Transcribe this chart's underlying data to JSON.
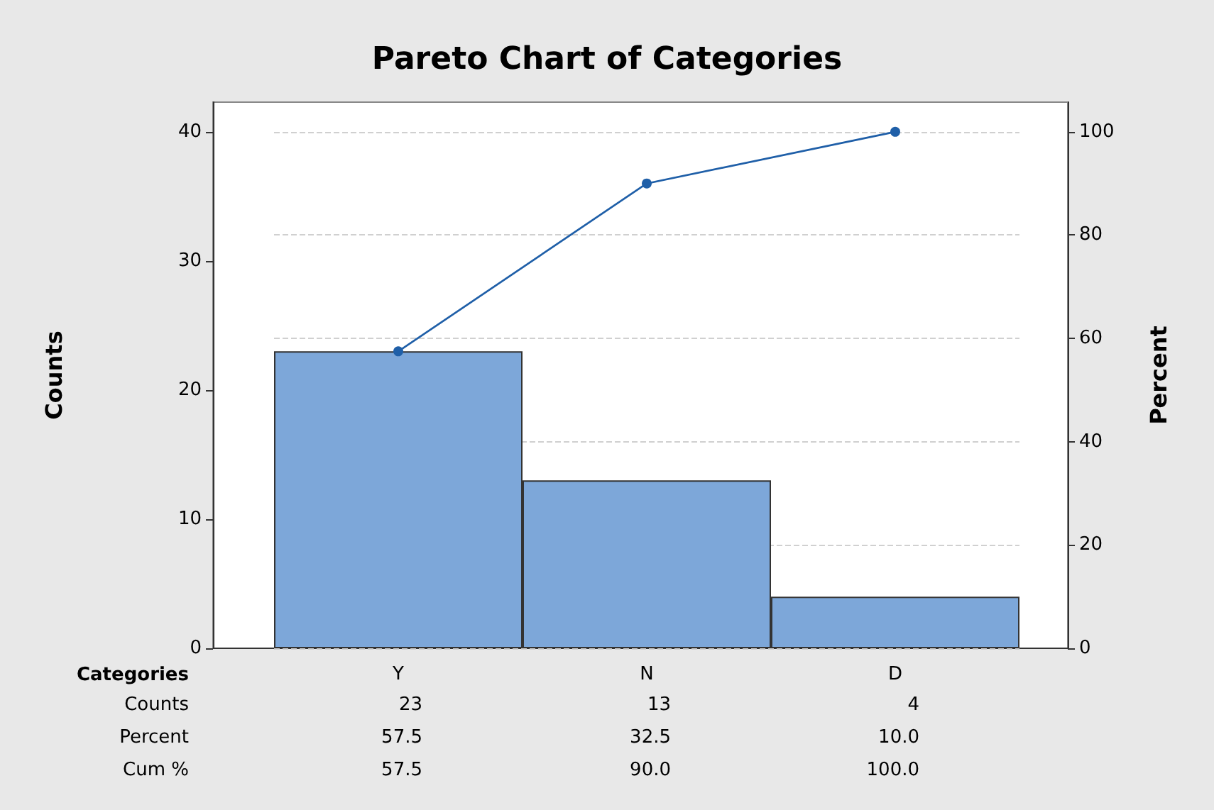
{
  "chart_data": {
    "type": "bar",
    "title": "Pareto Chart of Categories",
    "xlabel": "Categories",
    "ylabel": "Counts",
    "y2label": "Percent",
    "categories": [
      "Y",
      "N",
      "D"
    ],
    "series": [
      {
        "color": "#7da7d9",
        "values": [
          23,
          13,
          4
        ],
        "value_labels": [
          "23",
          "13",
          "4"
        ]
      },
      {
        "type": "line",
        "axis": "y2",
        "color": "#1f5fa8",
        "values": [
          57.5,
          90,
          100
        ],
        "value_labels": [
          "57.5",
          "90.0",
          "100.0"
        ]
      }
    ],
    "annotations": [
      "Counts",
      "Percent",
      "Cum %",
      "57.5",
      "32.5",
      "10.0"
    ],
    "ylim": [
      0,
      42.3
    ],
    "yticks": [
      0,
      10,
      20,
      30,
      40
    ],
    "y2lim": [
      0,
      105.75
    ],
    "y2ticks": [
      0,
      20,
      40,
      60,
      80,
      100
    ],
    "grid": true,
    "marker": "circle",
    "line_style": "solid"
  }
}
